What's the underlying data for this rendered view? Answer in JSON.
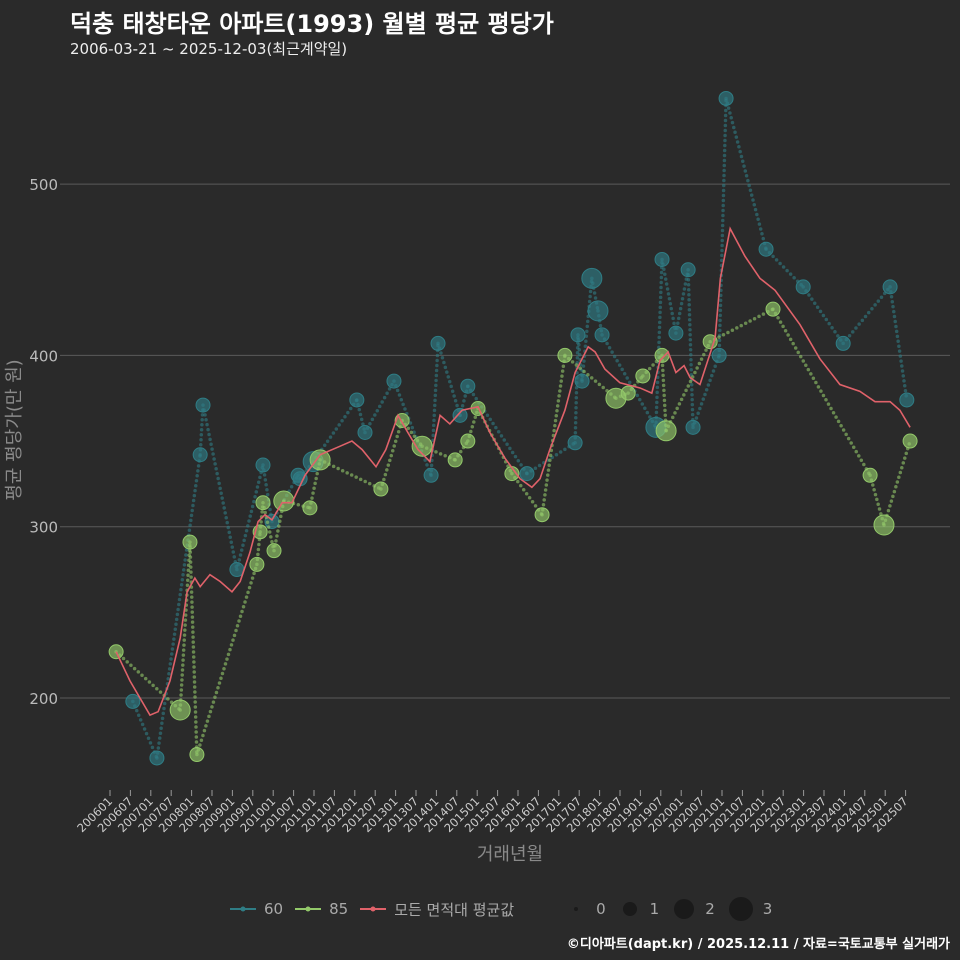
{
  "title": "덕충 태창타운 아파트(1993) 월별 평균 평당가",
  "subtitle": "2006-03-21 ~ 2025-12-03(최근계약일)",
  "caption": "©디아파트(dapt.kr) / 2025.12.11 / 자료=국토교통부 실거래가",
  "colors": {
    "s60": "#2f7d85",
    "s85": "#93c96a",
    "avg": "#e0626a",
    "grid": "#5a5a5a",
    "bg": "#2a2a2a"
  },
  "chart_data": {
    "type": "line",
    "title": "덕충 태창타운 아파트(1993) 월별 평균 평당가",
    "xlabel": "거래년월",
    "ylabel": "평균 평당가(만 원)",
    "x_unit": "decimal year",
    "xlim": [
      2005.85,
      2026.0
    ],
    "ylim": [
      145,
      565
    ],
    "yticks": [
      200,
      300,
      400,
      500
    ],
    "xticks": [
      "200601",
      "200607",
      "200701",
      "200707",
      "200801",
      "200807",
      "200901",
      "200907",
      "201001",
      "201007",
      "201101",
      "201107",
      "201201",
      "201207",
      "201301",
      "201307",
      "201401",
      "201407",
      "201501",
      "201507",
      "201601",
      "201607",
      "201701",
      "201707",
      "201801",
      "201807",
      "201901",
      "201907",
      "202001",
      "202007",
      "202101",
      "202107",
      "202201",
      "202207",
      "202301",
      "202307",
      "202401",
      "202407",
      "202501",
      "202507"
    ],
    "legend": {
      "series_labels": [
        "60",
        "85",
        "모든 면적대 평균값"
      ],
      "size_labels": [
        "0",
        "1",
        "2",
        "3"
      ],
      "position": "bottom"
    },
    "series": [
      {
        "name": "60",
        "points": [
          [
            2006.56,
            198,
            1
          ],
          [
            2007.15,
            165,
            1
          ],
          [
            2008.21,
            342,
            1
          ],
          [
            2008.28,
            371,
            1
          ],
          [
            2009.11,
            275,
            1
          ],
          [
            2009.75,
            336,
            1
          ],
          [
            2009.97,
            303,
            1
          ],
          [
            2010.61,
            330,
            1
          ],
          [
            2010.66,
            328,
            1
          ],
          [
            2010.98,
            338,
            2
          ],
          [
            2012.05,
            374,
            1
          ],
          [
            2012.25,
            355,
            1
          ],
          [
            2012.96,
            385,
            1
          ],
          [
            2013.87,
            330,
            1
          ],
          [
            2014.04,
            407,
            1
          ],
          [
            2014.58,
            365,
            1
          ],
          [
            2014.77,
            382,
            1
          ],
          [
            2016.22,
            331,
            1
          ],
          [
            2017.4,
            349,
            1
          ],
          [
            2017.47,
            412,
            1
          ],
          [
            2017.57,
            385,
            1
          ],
          [
            2017.81,
            445,
            2
          ],
          [
            2017.96,
            426,
            2
          ],
          [
            2018.06,
            412,
            1
          ],
          [
            2019.38,
            358,
            2
          ],
          [
            2019.53,
            456,
            1
          ],
          [
            2019.87,
            413,
            1
          ],
          [
            2020.17,
            450,
            1
          ],
          [
            2020.29,
            358,
            1
          ],
          [
            2020.93,
            400,
            1
          ],
          [
            2021.1,
            550,
            1
          ],
          [
            2022.08,
            462,
            1
          ],
          [
            2022.99,
            440,
            1
          ],
          [
            2023.97,
            407,
            1
          ],
          [
            2025.12,
            440,
            1
          ],
          [
            2025.53,
            374,
            1
          ]
        ]
      },
      {
        "name": "85",
        "points": [
          [
            2006.15,
            227,
            1
          ],
          [
            2007.72,
            193,
            2
          ],
          [
            2007.96,
            291,
            1
          ],
          [
            2008.13,
            167,
            1
          ],
          [
            2009.6,
            278,
            1
          ],
          [
            2009.68,
            297,
            1
          ],
          [
            2009.75,
            314,
            1
          ],
          [
            2010.02,
            286,
            1
          ],
          [
            2010.26,
            315,
            2
          ],
          [
            2010.9,
            311,
            1
          ],
          [
            2011.15,
            339,
            2
          ],
          [
            2012.64,
            322,
            1
          ],
          [
            2013.16,
            362,
            1
          ],
          [
            2013.65,
            347,
            2
          ],
          [
            2014.46,
            339,
            1
          ],
          [
            2014.77,
            350,
            1
          ],
          [
            2015.02,
            369,
            1
          ],
          [
            2015.85,
            331,
            1
          ],
          [
            2016.59,
            307,
            1
          ],
          [
            2017.15,
            400,
            1
          ],
          [
            2018.4,
            375,
            2
          ],
          [
            2018.7,
            378,
            1
          ],
          [
            2019.06,
            388,
            1
          ],
          [
            2019.53,
            400,
            1
          ],
          [
            2019.63,
            356,
            2
          ],
          [
            2020.71,
            408,
            1
          ],
          [
            2022.25,
            427,
            1
          ],
          [
            2024.63,
            330,
            1
          ],
          [
            2024.97,
            301,
            2
          ],
          [
            2025.61,
            350,
            1
          ]
        ]
      },
      {
        "name": "모든 면적대 평균값",
        "points": [
          [
            2006.15,
            227
          ],
          [
            2006.49,
            210
          ],
          [
            2006.98,
            190
          ],
          [
            2007.18,
            192
          ],
          [
            2007.47,
            210
          ],
          [
            2007.72,
            235
          ],
          [
            2007.89,
            262
          ],
          [
            2008.08,
            270
          ],
          [
            2008.21,
            265
          ],
          [
            2008.45,
            272
          ],
          [
            2008.7,
            268
          ],
          [
            2008.99,
            262
          ],
          [
            2009.19,
            268
          ],
          [
            2009.43,
            285
          ],
          [
            2009.63,
            303
          ],
          [
            2009.8,
            307
          ],
          [
            2009.97,
            304
          ],
          [
            2010.22,
            314
          ],
          [
            2010.46,
            314
          ],
          [
            2010.78,
            330
          ],
          [
            2011.15,
            342
          ],
          [
            2011.64,
            347
          ],
          [
            2011.93,
            350
          ],
          [
            2012.18,
            345
          ],
          [
            2012.52,
            335
          ],
          [
            2012.76,
            345
          ],
          [
            2013.06,
            365
          ],
          [
            2013.3,
            355
          ],
          [
            2013.55,
            345
          ],
          [
            2013.84,
            338
          ],
          [
            2014.09,
            365
          ],
          [
            2014.33,
            360
          ],
          [
            2014.63,
            368
          ],
          [
            2015.02,
            370
          ],
          [
            2015.31,
            355
          ],
          [
            2015.68,
            340
          ],
          [
            2016.05,
            328
          ],
          [
            2016.34,
            323
          ],
          [
            2016.54,
            328
          ],
          [
            2016.78,
            345
          ],
          [
            2017.15,
            368
          ],
          [
            2017.4,
            390
          ],
          [
            2017.72,
            405
          ],
          [
            2017.89,
            402
          ],
          [
            2018.13,
            392
          ],
          [
            2018.5,
            384
          ],
          [
            2018.99,
            381
          ],
          [
            2019.28,
            378
          ],
          [
            2019.48,
            397
          ],
          [
            2019.68,
            402
          ],
          [
            2019.87,
            390
          ],
          [
            2020.07,
            394
          ],
          [
            2020.22,
            387
          ],
          [
            2020.46,
            383
          ],
          [
            2020.83,
            410
          ],
          [
            2020.96,
            445
          ],
          [
            2021.2,
            474
          ],
          [
            2021.56,
            458
          ],
          [
            2021.93,
            445
          ],
          [
            2022.3,
            438
          ],
          [
            2022.91,
            418
          ],
          [
            2023.4,
            398
          ],
          [
            2023.89,
            383
          ],
          [
            2024.38,
            379
          ],
          [
            2024.75,
            373
          ],
          [
            2025.12,
            373
          ],
          [
            2025.36,
            368
          ],
          [
            2025.61,
            358
          ]
        ]
      }
    ]
  }
}
